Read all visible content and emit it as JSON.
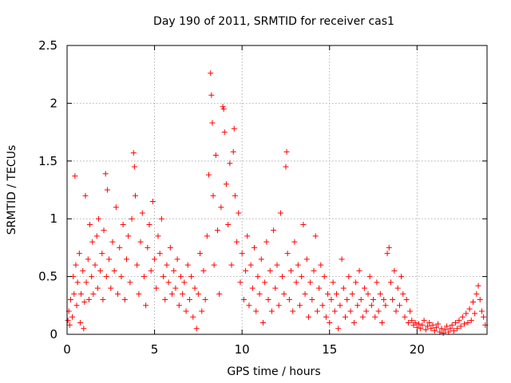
{
  "chart_data": {
    "type": "scatter",
    "title": "Day 190 of 2011, SRMTID for receiver cas1",
    "xlabel": "GPS time / hours",
    "ylabel": "SRMTID / TECUs",
    "xlim": [
      0,
      24
    ],
    "ylim": [
      0,
      2.5
    ],
    "x_ticks": [
      0,
      5,
      10,
      15,
      20
    ],
    "x_tick_labels": [
      "0",
      "5",
      "10",
      "15",
      "20"
    ],
    "y_ticks": [
      0,
      0.5,
      1,
      1.5,
      2,
      2.5
    ],
    "y_tick_labels": [
      "0",
      "0.5",
      "1",
      "1.5",
      "2",
      "2.5"
    ],
    "grid": true,
    "marker": "+",
    "color": "#ff0000",
    "series": [
      {
        "name": "SRMTID",
        "points": [
          [
            0.05,
            0.12
          ],
          [
            0.1,
            0.2
          ],
          [
            0.15,
            0.08
          ],
          [
            0.2,
            0.3
          ],
          [
            0.3,
            0.15
          ],
          [
            0.35,
            0.5
          ],
          [
            0.4,
            0.35
          ],
          [
            0.45,
            1.37
          ],
          [
            0.5,
            0.6
          ],
          [
            0.55,
            0.25
          ],
          [
            0.6,
            0.45
          ],
          [
            0.7,
            0.7
          ],
          [
            0.75,
            0.1
          ],
          [
            0.8,
            0.35
          ],
          [
            0.9,
            0.55
          ],
          [
            0.95,
            0.05
          ],
          [
            1.0,
            0.28
          ],
          [
            1.05,
            1.2
          ],
          [
            1.1,
            0.45
          ],
          [
            1.2,
            0.65
          ],
          [
            1.25,
            0.3
          ],
          [
            1.3,
            0.95
          ],
          [
            1.4,
            0.5
          ],
          [
            1.45,
            0.8
          ],
          [
            1.5,
            0.35
          ],
          [
            1.6,
            0.6
          ],
          [
            1.7,
            0.85
          ],
          [
            1.75,
            0.4
          ],
          [
            1.8,
            1.0
          ],
          [
            1.9,
            0.55
          ],
          [
            2.0,
            0.7
          ],
          [
            2.05,
            0.3
          ],
          [
            2.1,
            0.9
          ],
          [
            2.2,
            1.39
          ],
          [
            2.25,
            0.5
          ],
          [
            2.3,
            1.25
          ],
          [
            2.4,
            0.65
          ],
          [
            2.5,
            0.4
          ],
          [
            2.6,
            0.8
          ],
          [
            2.7,
            0.55
          ],
          [
            2.8,
            1.1
          ],
          [
            2.9,
            0.35
          ],
          [
            3.0,
            0.75
          ],
          [
            3.1,
            0.5
          ],
          [
            3.2,
            0.95
          ],
          [
            3.3,
            0.3
          ],
          [
            3.4,
            0.65
          ],
          [
            3.5,
            0.85
          ],
          [
            3.6,
            0.45
          ],
          [
            3.7,
            1.0
          ],
          [
            3.8,
            1.57
          ],
          [
            3.85,
            1.45
          ],
          [
            3.9,
            1.2
          ],
          [
            4.0,
            0.6
          ],
          [
            4.1,
            0.35
          ],
          [
            4.2,
            0.8
          ],
          [
            4.3,
            1.05
          ],
          [
            4.4,
            0.5
          ],
          [
            4.5,
            0.25
          ],
          [
            4.6,
            0.75
          ],
          [
            4.7,
            0.95
          ],
          [
            4.8,
            0.55
          ],
          [
            4.9,
            1.15
          ],
          [
            5.0,
            0.65
          ],
          [
            5.1,
            0.4
          ],
          [
            5.2,
            0.85
          ],
          [
            5.3,
            0.7
          ],
          [
            5.4,
            1.0
          ],
          [
            5.5,
            0.5
          ],
          [
            5.6,
            0.3
          ],
          [
            5.7,
            0.6
          ],
          [
            5.8,
            0.45
          ],
          [
            5.9,
            0.75
          ],
          [
            6.0,
            0.35
          ],
          [
            6.1,
            0.55
          ],
          [
            6.2,
            0.4
          ],
          [
            6.3,
            0.65
          ],
          [
            6.4,
            0.25
          ],
          [
            6.5,
            0.5
          ],
          [
            6.6,
            0.35
          ],
          [
            6.7,
            0.45
          ],
          [
            6.8,
            0.2
          ],
          [
            6.9,
            0.6
          ],
          [
            7.0,
            0.3
          ],
          [
            7.1,
            0.5
          ],
          [
            7.2,
            0.15
          ],
          [
            7.3,
            0.4
          ],
          [
            7.4,
            0.05
          ],
          [
            7.5,
            0.35
          ],
          [
            7.6,
            0.7
          ],
          [
            7.7,
            0.2
          ],
          [
            7.8,
            0.55
          ],
          [
            7.9,
            0.3
          ],
          [
            8.0,
            0.85
          ],
          [
            8.1,
            1.38
          ],
          [
            8.2,
            2.26
          ],
          [
            8.25,
            2.07
          ],
          [
            8.3,
            1.83
          ],
          [
            8.35,
            1.2
          ],
          [
            8.4,
            0.6
          ],
          [
            8.5,
            1.55
          ],
          [
            8.6,
            0.9
          ],
          [
            8.7,
            0.35
          ],
          [
            8.8,
            1.1
          ],
          [
            8.9,
            1.97
          ],
          [
            8.95,
            1.95
          ],
          [
            9.0,
            1.75
          ],
          [
            9.1,
            1.3
          ],
          [
            9.2,
            0.95
          ],
          [
            9.3,
            1.48
          ],
          [
            9.4,
            0.6
          ],
          [
            9.5,
            1.58
          ],
          [
            9.55,
            1.78
          ],
          [
            9.6,
            1.2
          ],
          [
            9.7,
            0.8
          ],
          [
            9.8,
            1.05
          ],
          [
            9.9,
            0.45
          ],
          [
            10.0,
            0.7
          ],
          [
            10.1,
            0.3
          ],
          [
            10.2,
            0.55
          ],
          [
            10.3,
            0.85
          ],
          [
            10.4,
            0.25
          ],
          [
            10.5,
            0.6
          ],
          [
            10.6,
            0.4
          ],
          [
            10.7,
            0.75
          ],
          [
            10.8,
            0.2
          ],
          [
            10.9,
            0.5
          ],
          [
            11.0,
            0.35
          ],
          [
            11.1,
            0.65
          ],
          [
            11.2,
            0.1
          ],
          [
            11.3,
            0.45
          ],
          [
            11.4,
            0.8
          ],
          [
            11.5,
            0.3
          ],
          [
            11.6,
            0.55
          ],
          [
            11.7,
            0.2
          ],
          [
            11.8,
            0.9
          ],
          [
            11.9,
            0.4
          ],
          [
            12.0,
            0.6
          ],
          [
            12.1,
            0.25
          ],
          [
            12.2,
            1.05
          ],
          [
            12.3,
            0.5
          ],
          [
            12.4,
            0.35
          ],
          [
            12.5,
            1.45
          ],
          [
            12.55,
            1.58
          ],
          [
            12.6,
            0.7
          ],
          [
            12.7,
            0.3
          ],
          [
            12.8,
            0.55
          ],
          [
            12.9,
            0.2
          ],
          [
            13.0,
            0.8
          ],
          [
            13.1,
            0.45
          ],
          [
            13.2,
            0.6
          ],
          [
            13.3,
            0.25
          ],
          [
            13.4,
            0.5
          ],
          [
            13.5,
            0.95
          ],
          [
            13.6,
            0.35
          ],
          [
            13.7,
            0.65
          ],
          [
            13.8,
            0.15
          ],
          [
            13.9,
            0.45
          ],
          [
            14.0,
            0.3
          ],
          [
            14.1,
            0.55
          ],
          [
            14.2,
            0.85
          ],
          [
            14.3,
            0.2
          ],
          [
            14.4,
            0.4
          ],
          [
            14.5,
            0.6
          ],
          [
            14.6,
            0.25
          ],
          [
            14.7,
            0.5
          ],
          [
            14.8,
            0.15
          ],
          [
            14.9,
            0.35
          ],
          [
            15.0,
            0.1
          ],
          [
            15.1,
            0.3
          ],
          [
            15.2,
            0.45
          ],
          [
            15.3,
            0.2
          ],
          [
            15.4,
            0.35
          ],
          [
            15.5,
            0.05
          ],
          [
            15.6,
            0.25
          ],
          [
            15.7,
            0.65
          ],
          [
            15.8,
            0.4
          ],
          [
            15.9,
            0.15
          ],
          [
            16.0,
            0.3
          ],
          [
            16.1,
            0.5
          ],
          [
            16.2,
            0.2
          ],
          [
            16.3,
            0.35
          ],
          [
            16.4,
            0.1
          ],
          [
            16.5,
            0.45
          ],
          [
            16.6,
            0.25
          ],
          [
            16.7,
            0.55
          ],
          [
            16.8,
            0.3
          ],
          [
            16.9,
            0.15
          ],
          [
            17.0,
            0.4
          ],
          [
            17.1,
            0.2
          ],
          [
            17.2,
            0.35
          ],
          [
            17.3,
            0.5
          ],
          [
            17.4,
            0.25
          ],
          [
            17.5,
            0.3
          ],
          [
            17.6,
            0.15
          ],
          [
            17.7,
            0.45
          ],
          [
            17.8,
            0.2
          ],
          [
            17.9,
            0.35
          ],
          [
            18.0,
            0.1
          ],
          [
            18.1,
            0.3
          ],
          [
            18.2,
            0.25
          ],
          [
            18.3,
            0.7
          ],
          [
            18.4,
            0.75
          ],
          [
            18.5,
            0.45
          ],
          [
            18.6,
            0.3
          ],
          [
            18.7,
            0.55
          ],
          [
            18.8,
            0.2
          ],
          [
            18.9,
            0.4
          ],
          [
            19.0,
            0.25
          ],
          [
            19.1,
            0.5
          ],
          [
            19.2,
            0.35
          ],
          [
            19.3,
            0.15
          ],
          [
            19.4,
            0.3
          ],
          [
            19.5,
            0.1
          ],
          [
            19.6,
            0.2
          ],
          [
            19.7,
            0.12
          ],
          [
            19.8,
            0.08
          ],
          [
            19.9,
            0.1
          ],
          [
            20.0,
            0.06
          ],
          [
            20.1,
            0.09
          ],
          [
            20.2,
            0.05
          ],
          [
            20.3,
            0.08
          ],
          [
            20.4,
            0.12
          ],
          [
            20.5,
            0.04
          ],
          [
            20.6,
            0.07
          ],
          [
            20.7,
            0.1
          ],
          [
            20.8,
            0.05
          ],
          [
            20.9,
            0.08
          ],
          [
            21.0,
            0.03
          ],
          [
            21.1,
            0.06
          ],
          [
            21.2,
            0.09
          ],
          [
            21.3,
            0.02
          ],
          [
            21.4,
            0.05
          ],
          [
            21.5,
            0.01
          ],
          [
            21.6,
            0.04
          ],
          [
            21.7,
            0.07
          ],
          [
            21.8,
            0.02
          ],
          [
            21.9,
            0.05
          ],
          [
            22.0,
            0.08
          ],
          [
            22.1,
            0.03
          ],
          [
            22.2,
            0.1
          ],
          [
            22.3,
            0.05
          ],
          [
            22.4,
            0.12
          ],
          [
            22.5,
            0.07
          ],
          [
            22.6,
            0.15
          ],
          [
            22.7,
            0.09
          ],
          [
            22.8,
            0.18
          ],
          [
            22.9,
            0.1
          ],
          [
            23.0,
            0.22
          ],
          [
            23.1,
            0.12
          ],
          [
            23.2,
            0.28
          ],
          [
            23.3,
            0.18
          ],
          [
            23.4,
            0.35
          ],
          [
            23.5,
            0.42
          ],
          [
            23.6,
            0.3
          ],
          [
            23.7,
            0.2
          ],
          [
            23.8,
            0.15
          ],
          [
            23.9,
            0.08
          ]
        ]
      }
    ]
  }
}
